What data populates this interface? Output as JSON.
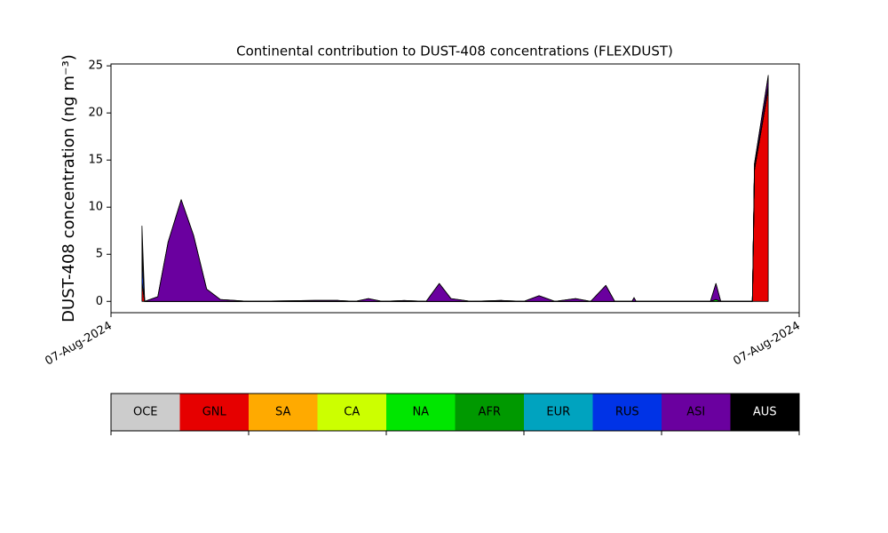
{
  "chart_data": {
    "type": "stacked_area",
    "title": "Continental contribution to DUST-408 concentrations (FLEXDUST)",
    "y_label": "DUST-408 concentration (ng m⁻³)",
    "x": [
      4.5,
      4.9,
      6.8,
      8.3,
      10.2,
      12,
      13.9,
      15.9,
      20,
      29.7,
      33,
      35.5,
      37.4,
      39.4,
      42.6,
      45.8,
      47.7,
      49.4,
      52.3,
      56.8,
      60,
      62.2,
      64.5,
      67.5,
      69.7,
      71.9,
      73.2,
      75.7,
      76,
      76.3,
      87.1,
      87.9,
      88.6,
      93.2,
      93.3,
      93.5,
      95.5
    ],
    "xlim": [
      0,
      100
    ],
    "xticks": [
      {
        "value": 0,
        "label": "07-Aug-2024"
      },
      {
        "value": 100,
        "label": "07-Aug-2024"
      }
    ],
    "ylim": [
      -1.2,
      25.2
    ],
    "yticks": [
      0,
      5,
      10,
      15,
      20,
      25
    ],
    "series": [
      {
        "name": "OCE",
        "color": "#cccccc",
        "values": [
          0,
          0,
          0,
          0,
          0,
          0,
          0,
          0,
          0,
          0,
          0,
          0,
          0,
          0,
          0,
          0,
          0,
          0,
          0,
          0,
          0,
          0,
          0,
          0,
          0,
          0,
          0,
          0,
          0,
          0,
          0,
          0,
          0,
          0,
          0,
          0,
          0
        ]
      },
      {
        "name": "GNL",
        "color": "#e60000",
        "values": [
          2,
          0,
          0,
          0,
          0,
          0,
          0,
          0,
          0,
          0,
          0,
          0,
          0,
          0,
          0,
          0,
          0,
          0,
          0,
          0,
          0,
          0,
          0,
          0,
          0,
          0,
          0,
          0,
          0,
          0,
          0,
          0,
          0,
          0,
          4.5,
          14,
          22.6
        ]
      },
      {
        "name": "SA",
        "color": "#ffaa00",
        "values": [
          0,
          0,
          0,
          0,
          0,
          0,
          0,
          0,
          0,
          0,
          0,
          0,
          0,
          0,
          0,
          0,
          0,
          0,
          0,
          0,
          0,
          0,
          0,
          0,
          0,
          0,
          0,
          0,
          0,
          0,
          0,
          0,
          0,
          0,
          0,
          0,
          0
        ]
      },
      {
        "name": "CA",
        "color": "#ccff00",
        "values": [
          0,
          0,
          0,
          0,
          0,
          0,
          0,
          0,
          0,
          0,
          0,
          0,
          0,
          0,
          0,
          0,
          0,
          0,
          0,
          0,
          0,
          0,
          0,
          0,
          0,
          0,
          0,
          0,
          0,
          0,
          0,
          0,
          0,
          0,
          0,
          0,
          0
        ]
      },
      {
        "name": "NA",
        "color": "#00e600",
        "values": [
          0,
          0,
          0,
          0,
          0,
          0,
          0,
          0,
          0,
          0,
          0,
          0,
          0,
          0,
          0,
          0,
          0,
          0,
          0,
          0,
          0,
          0,
          0,
          0,
          0,
          0,
          0,
          0,
          0,
          0,
          0,
          0.2,
          0,
          0,
          0,
          0,
          0
        ]
      },
      {
        "name": "AFR",
        "color": "#009900",
        "values": [
          0,
          0,
          0,
          0,
          0,
          0,
          0,
          0,
          0,
          0,
          0,
          0,
          0,
          0,
          0,
          0,
          0,
          0,
          0,
          0,
          0,
          0,
          0,
          0,
          0,
          0,
          0,
          0,
          0,
          0,
          0,
          0,
          0,
          0,
          0,
          0,
          0
        ]
      },
      {
        "name": "EUR",
        "color": "#00a3bf",
        "values": [
          0,
          0,
          0,
          0,
          0,
          0,
          0,
          0,
          0,
          0,
          0,
          0,
          0,
          0,
          0,
          0,
          0,
          0,
          0,
          0,
          0,
          0,
          0,
          0,
          0,
          0,
          0,
          0,
          0,
          0,
          0,
          0,
          0,
          0,
          0,
          0,
          0
        ]
      },
      {
        "name": "RUS",
        "color": "#0033e6",
        "values": [
          2.5,
          0,
          0,
          0,
          0,
          0,
          0,
          0,
          0,
          0,
          0,
          0,
          0,
          0,
          0,
          0,
          0,
          0,
          0,
          0,
          0,
          0,
          0,
          0,
          0,
          0,
          0,
          0,
          0,
          0,
          0,
          0,
          0,
          0,
          0,
          0.1,
          0.3
        ]
      },
      {
        "name": "ASI",
        "color": "#6a009f",
        "values": [
          0,
          0,
          0.5,
          6.3,
          10.8,
          7,
          1.3,
          0.2,
          0,
          0.1,
          0.1,
          0,
          0.3,
          0,
          0.1,
          0,
          1.9,
          0.3,
          0,
          0.1,
          0,
          0.6,
          0,
          0.3,
          0,
          1.7,
          0,
          0,
          0.4,
          0,
          0,
          1.7,
          0,
          0,
          0.2,
          0.5,
          1.0
        ]
      },
      {
        "name": "AUS",
        "color": "#000000",
        "values": [
          3.5,
          0,
          0,
          0,
          0,
          0,
          0,
          0,
          0,
          0,
          0,
          0,
          0,
          0,
          0,
          0,
          0,
          0,
          0,
          0,
          0,
          0,
          0,
          0,
          0,
          0,
          0,
          0,
          0,
          0,
          0,
          0,
          0,
          0,
          0,
          0,
          0.1
        ]
      }
    ]
  }
}
